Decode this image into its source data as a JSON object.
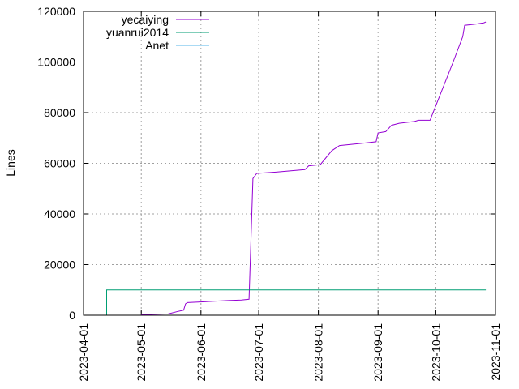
{
  "chart_data": {
    "type": "line",
    "title": "",
    "xlabel": "",
    "ylabel": "Lines",
    "xlim": [
      "2023-04-01",
      "2023-11-01"
    ],
    "ylim": [
      0,
      120000
    ],
    "grid": true,
    "legend": "top-left",
    "x_tick_labels": [
      "2023-04-01",
      "2023-05-01",
      "2023-06-01",
      "2023-07-01",
      "2023-08-01",
      "2023-09-01",
      "2023-10-01",
      "2023-11-01"
    ],
    "y_tick_labels": [
      "0",
      "20000",
      "40000",
      "60000",
      "80000",
      "100000",
      "120000"
    ],
    "series": [
      {
        "name": "yecaiying",
        "color": "#9400d3",
        "points": [
          [
            "2023-05-01",
            200
          ],
          [
            "2023-05-15",
            500
          ],
          [
            "2023-05-20",
            1500
          ],
          [
            "2023-05-23",
            2000
          ],
          [
            "2023-05-24",
            4500
          ],
          [
            "2023-05-25",
            5000
          ],
          [
            "2023-06-15",
            5800
          ],
          [
            "2023-06-22",
            6000
          ],
          [
            "2023-06-26",
            6300
          ],
          [
            "2023-06-27",
            30000
          ],
          [
            "2023-06-28",
            54000
          ],
          [
            "2023-06-30",
            56000
          ],
          [
            "2023-07-10",
            56500
          ],
          [
            "2023-07-25",
            57500
          ],
          [
            "2023-07-27",
            59000
          ],
          [
            "2023-08-02",
            59500
          ],
          [
            "2023-08-08",
            65000
          ],
          [
            "2023-08-12",
            67000
          ],
          [
            "2023-08-25",
            68000
          ],
          [
            "2023-08-31",
            68500
          ],
          [
            "2023-09-01",
            72000
          ],
          [
            "2023-09-05",
            72500
          ],
          [
            "2023-09-08",
            75000
          ],
          [
            "2023-09-12",
            75800
          ],
          [
            "2023-09-20",
            76500
          ],
          [
            "2023-09-22",
            77000
          ],
          [
            "2023-09-28",
            77000
          ],
          [
            "2023-10-10",
            100000
          ],
          [
            "2023-10-15",
            110000
          ],
          [
            "2023-10-16",
            114500
          ],
          [
            "2023-10-22",
            115000
          ],
          [
            "2023-10-26",
            115500
          ],
          [
            "2023-10-27",
            115800
          ]
        ]
      },
      {
        "name": "yuanrui2014",
        "color": "#009e73",
        "points": [
          [
            "2023-04-13",
            0
          ],
          [
            "2023-04-13",
            10000
          ],
          [
            "2023-10-27",
            10000
          ]
        ]
      },
      {
        "name": "Anet",
        "color": "#56b4e9",
        "points": [
          [
            "2023-06-27",
            0
          ],
          [
            "2023-10-27",
            0
          ]
        ]
      }
    ]
  }
}
